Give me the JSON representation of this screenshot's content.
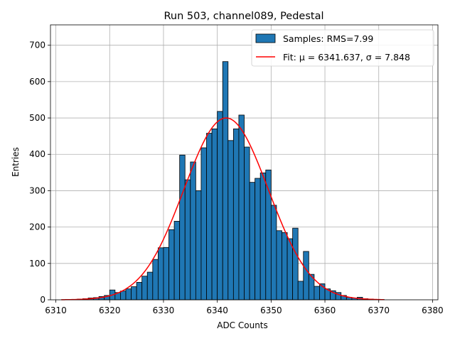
{
  "chart_data": {
    "type": "bar",
    "title": "Run 503, channel089, Pedestal",
    "xlabel": "ADC Counts",
    "ylabel": "Entries",
    "xlim": [
      6309,
      6381
    ],
    "ylim": [
      0,
      756
    ],
    "xticks": [
      6310,
      6320,
      6330,
      6340,
      6350,
      6360,
      6370,
      6380
    ],
    "yticks": [
      0,
      100,
      200,
      300,
      400,
      500,
      600,
      700
    ],
    "grid": true,
    "legend_position": "top-right",
    "bin_width": 1,
    "histogram": {
      "name": "Samples: RMS=7.99",
      "color": "#1f77b4",
      "edge_color": "#000000",
      "bin_starts": [
        6312,
        6313,
        6314,
        6315,
        6316,
        6317,
        6318,
        6319,
        6320,
        6321,
        6322,
        6323,
        6324,
        6325,
        6326,
        6327,
        6328,
        6329,
        6330,
        6331,
        6332,
        6333,
        6334,
        6335,
        6336,
        6337,
        6338,
        6339,
        6340,
        6341,
        6342,
        6343,
        6344,
        6345,
        6346,
        6347,
        6348,
        6349,
        6350,
        6351,
        6352,
        6353,
        6354,
        6355,
        6356,
        6357,
        6358,
        6359,
        6360,
        6361,
        6362,
        6363,
        6364,
        6365,
        6366,
        6367,
        6368,
        6369,
        6370
      ],
      "counts": [
        1,
        1,
        2,
        3,
        5,
        6,
        9,
        12,
        27,
        20,
        24,
        30,
        36,
        48,
        65,
        76,
        111,
        143,
        144,
        193,
        216,
        398,
        330,
        379,
        300,
        418,
        458,
        470,
        518,
        655,
        438,
        470,
        508,
        420,
        323,
        334,
        349,
        357,
        260,
        190,
        185,
        168,
        197,
        51,
        133,
        70,
        37,
        44,
        30,
        25,
        20,
        12,
        7,
        5,
        7,
        3,
        2,
        1,
        1
      ]
    },
    "fit": {
      "name": "Fit: μ = 6341.637, σ = 7.848",
      "color": "#ff0000",
      "mu": 6341.637,
      "sigma": 7.848,
      "amplitude": 500,
      "x_range": [
        6311,
        6371
      ]
    }
  }
}
